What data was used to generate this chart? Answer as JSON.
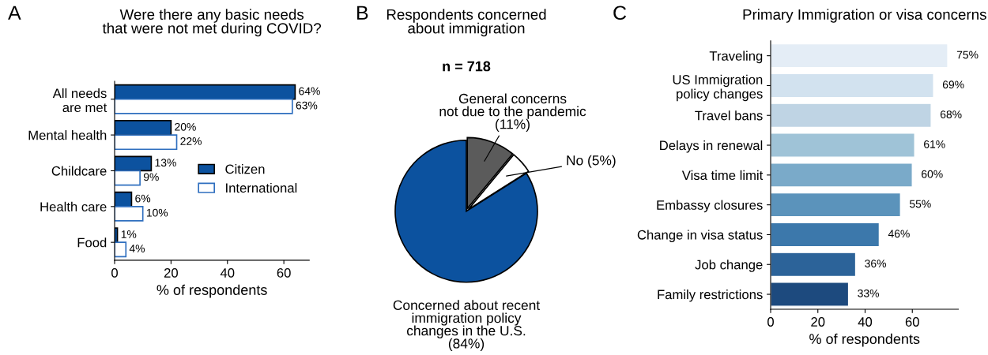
{
  "chart_data": [
    {
      "type": "bar",
      "orientation": "horizontal",
      "title": "Were there any basic needs\nthat were not met during COVID?",
      "xlabel": "% of respondents",
      "annotations": [
        "A"
      ],
      "categories": [
        "All needs\nare met",
        "Mental health",
        "Childcare",
        "Health care",
        "Food"
      ],
      "series": [
        {
          "name": "Citizen",
          "color": "#0c529f",
          "values": [
            64,
            20,
            13,
            6,
            1
          ],
          "value_labels": [
            "64%",
            "20%",
            "13%",
            "6%",
            "1%"
          ]
        },
        {
          "name": "International",
          "color": "#ffffff",
          "values": [
            63,
            22,
            9,
            10,
            4
          ],
          "value_labels": [
            "63%",
            "22%",
            "9%",
            "10%",
            "4%"
          ]
        }
      ],
      "xlim": [
        0,
        69
      ],
      "xticks": [
        0,
        20,
        40,
        60
      ],
      "legend": "right",
      "grid": false
    },
    {
      "type": "pie",
      "title": "Respondents concerned\nabout immigration",
      "annotations": [
        "B",
        "n = 718"
      ],
      "categories": [
        "General concerns\nnot due to the pandemic\n(11%)",
        "No (5%)",
        "Concerned about recent\nimmigration policy\nchanges in the U.S.\n(84%)"
      ],
      "values": [
        11,
        5,
        84
      ],
      "colors": [
        "#5b5b5b",
        "#ffffff",
        "#0c529f"
      ]
    },
    {
      "type": "bar",
      "orientation": "horizontal",
      "title": "Primary Immigration or visa concerns",
      "xlabel": "% of respondents",
      "annotations": [
        "C"
      ],
      "categories": [
        "Traveling",
        "US Immigration\npolicy changes",
        "Travel bans",
        "Delays in renewal",
        "Visa time limit",
        "Embassy closures",
        "Change in visa status",
        "Job change",
        "Family restrictions"
      ],
      "values": [
        75,
        69,
        68,
        61,
        60,
        55,
        46,
        36,
        33
      ],
      "value_labels": [
        "75%",
        "69%",
        "68%",
        "61%",
        "60%",
        "55%",
        "46%",
        "36%",
        "33%"
      ],
      "colors": [
        "#e4edf6",
        "#d2e2ef",
        "#bfd4e4",
        "#9fc3d7",
        "#7aaac9",
        "#5b93bb",
        "#3c78ab",
        "#2c6399",
        "#1d4a7e"
      ],
      "xlim": [
        0,
        79.5
      ],
      "xticks": [
        0,
        20,
        40,
        60
      ],
      "grid": false
    }
  ]
}
